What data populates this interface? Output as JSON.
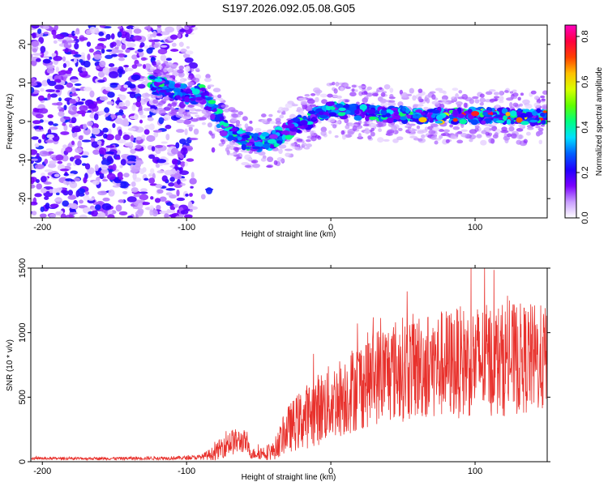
{
  "chart_data": [
    {
      "type": "heatmap",
      "title": "S197.2026.092.05.08.G05",
      "xlabel": "Height of straight line (km)",
      "ylabel": "Frequency (Hz)",
      "xlim": [
        -208,
        150
      ],
      "ylim": [
        -25,
        25
      ],
      "x_ticks": [
        -200,
        -100,
        0,
        100
      ],
      "x_tick_labels": [
        "-200",
        "-100",
        "0",
        "100"
      ],
      "y_ticks": [
        -20,
        -10,
        0,
        10,
        20
      ],
      "y_tick_labels": [
        "-20",
        "-10",
        "0",
        "10",
        "20"
      ],
      "ridge": {
        "description_x_km": [
          -124,
          -110,
          -98,
          -90,
          -80,
          -72,
          -62,
          -52,
          -42,
          -32,
          -24,
          -16,
          -8,
          0,
          20,
          40,
          60,
          80,
          100,
          120,
          150
        ],
        "freq_hz": [
          9.5,
          8.5,
          6.5,
          7.5,
          2.0,
          -2.5,
          -4.5,
          -5.5,
          -5.0,
          -3.0,
          -1.0,
          0.0,
          2.0,
          3.0,
          2.5,
          2.0,
          1.5,
          1.5,
          1.5,
          1.5,
          1.0
        ]
      },
      "colorbar": {
        "label": "Normalized spectral amplitude",
        "range": [
          0.0,
          0.85
        ],
        "ticks": [
          0.0,
          0.2,
          0.4,
          0.6,
          0.8
        ],
        "tick_labels": [
          "0.0",
          "0.2",
          "0.4",
          "0.6",
          "0.8"
        ],
        "colors": [
          "#ffffff",
          "#c89cff",
          "#7a00ff",
          "#2000ff",
          "#0060ff",
          "#00e0ff",
          "#00ff80",
          "#60ff00",
          "#d8ff00",
          "#ffc000",
          "#ff4000",
          "#ff0040",
          "#ff00c0"
        ]
      }
    },
    {
      "type": "line",
      "title": "",
      "xlabel": "Height of straight line (km)",
      "ylabel": "SNR (10 * v/v)",
      "xlim": [
        -208,
        150
      ],
      "ylim": [
        0,
        1500
      ],
      "x_ticks": [
        -200,
        -100,
        0,
        100
      ],
      "x_tick_labels": [
        "-200",
        "-100",
        "0",
        "100"
      ],
      "y_ticks": [
        0,
        500,
        1000,
        1500
      ],
      "y_tick_labels": [
        "0",
        "500",
        "1000",
        "1500"
      ],
      "series": [
        {
          "name": "SNR",
          "color": "#e8312c",
          "envelope_x": [
            -208,
            -150,
            -100,
            -90,
            -80,
            -72,
            -60,
            -55,
            -40,
            -30,
            -20,
            -10,
            0,
            10,
            20,
            30,
            40,
            60,
            80,
            100,
            120,
            140,
            150
          ],
          "envelope_mean": [
            25,
            25,
            30,
            35,
            70,
            150,
            160,
            60,
            80,
            250,
            330,
            400,
            460,
            520,
            600,
            660,
            700,
            740,
            760,
            780,
            790,
            800,
            790
          ],
          "envelope_spread": [
            10,
            12,
            15,
            20,
            60,
            110,
            90,
            40,
            70,
            180,
            240,
            280,
            300,
            320,
            360,
            380,
            400,
            420,
            430,
            440,
            440,
            430,
            420
          ]
        }
      ]
    }
  ]
}
